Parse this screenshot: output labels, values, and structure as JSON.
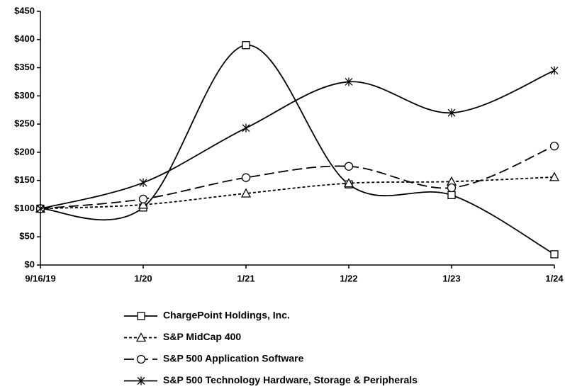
{
  "chart_data": {
    "type": "line",
    "categories": [
      "9/16/19",
      "1/20",
      "1/21",
      "1/22",
      "1/23",
      "1/24"
    ],
    "series": [
      {
        "name": "ChargePoint Holdings, Inc.",
        "color": "#000000",
        "line_style": "solid",
        "marker": "square",
        "values": [
          100,
          102,
          390,
          143,
          124,
          19
        ]
      },
      {
        "name": "S&P MidCap 400",
        "color": "#000000",
        "line_style": "dotted",
        "marker": "triangle",
        "values": [
          100,
          107,
          127,
          145,
          148,
          156
        ]
      },
      {
        "name": "S&P 500 Application Software",
        "color": "#000000",
        "line_style": "dashed",
        "marker": "circle",
        "values": [
          100,
          117,
          155,
          175,
          137,
          211
        ]
      },
      {
        "name": "S&P 500 Technology Hardware, Storage & Peripherals",
        "color": "#000000",
        "line_style": "solid",
        "marker": "star",
        "values": [
          100,
          146,
          243,
          325,
          270,
          345
        ]
      }
    ],
    "ylim": [
      0,
      450
    ],
    "yticks": [
      {
        "value": 0,
        "label": "$0"
      },
      {
        "value": 50,
        "label": "$50"
      },
      {
        "value": 100,
        "label": "$100"
      },
      {
        "value": 150,
        "label": "$150"
      },
      {
        "value": 200,
        "label": "$200"
      },
      {
        "value": 250,
        "label": "$250"
      },
      {
        "value": 300,
        "label": "$300"
      },
      {
        "value": 350,
        "label": "$350"
      },
      {
        "value": 400,
        "label": "$400"
      },
      {
        "value": 450,
        "label": "$450"
      }
    ],
    "grid": false,
    "legend": "bottom"
  }
}
